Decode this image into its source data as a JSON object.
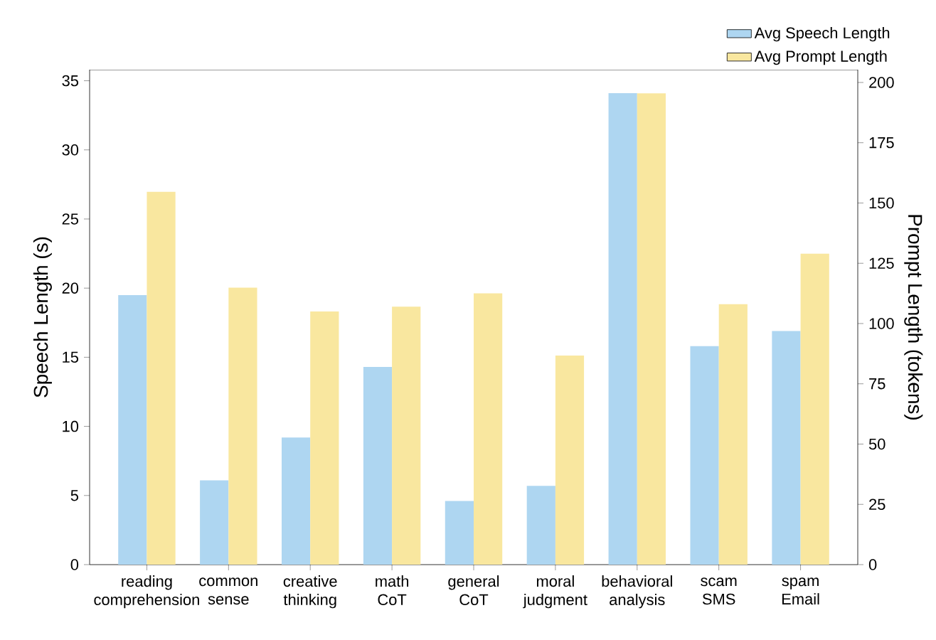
{
  "chart_data": {
    "type": "bar",
    "ylabel": "Speech Length (s)",
    "y2label": "Prompt Length (tokens)",
    "categories": [
      "reading comprehension",
      "common sense",
      "creative thinking",
      "math CoT",
      "general CoT",
      "moral judgment",
      "behavioral analysis",
      "scam SMS",
      "spam Email"
    ],
    "series": [
      {
        "name": "Avg Speech Length",
        "color": "#aed6f1",
        "values": [
          19.5,
          6.1,
          9.2,
          14.3,
          4.6,
          5.7,
          34.1,
          15.8,
          16.9
        ]
      },
      {
        "name": "Avg Prompt Length",
        "color": "#f9e79f",
        "axis": "y2",
        "values": [
          154.6,
          114.9,
          105,
          107,
          112.5,
          86.7,
          195.5,
          108,
          129
        ]
      }
    ],
    "ylim": [
      0,
      35.8
    ],
    "yticks": [
      0,
      5,
      10,
      15,
      20,
      25,
      30,
      35
    ],
    "y2lim": [
      0,
      205.3
    ],
    "y2ticks": [
      0,
      25,
      50,
      75,
      100,
      125,
      150,
      175,
      200
    ],
    "legend": "top right",
    "grid": false
  }
}
